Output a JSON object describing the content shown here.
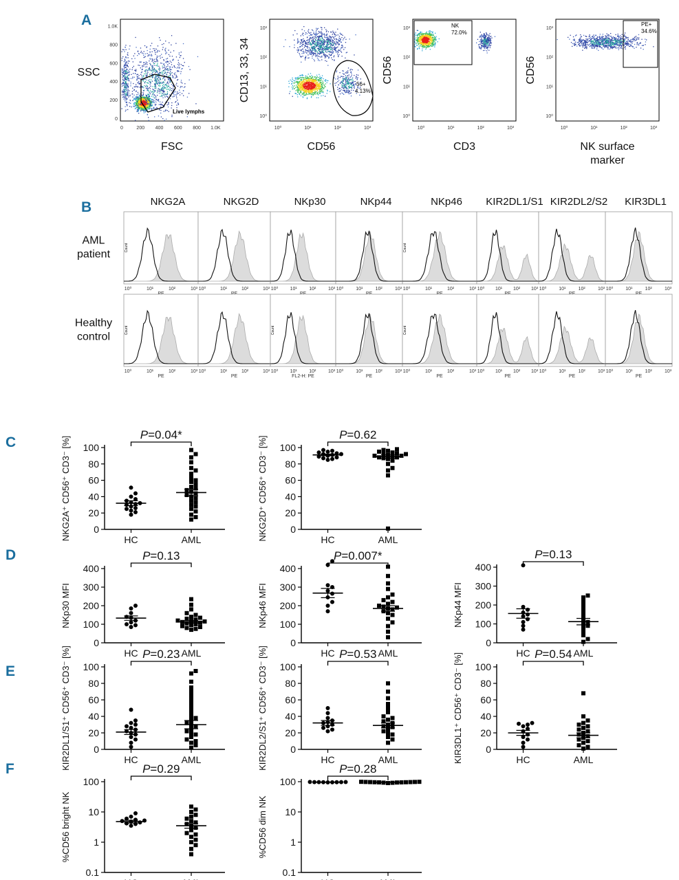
{
  "panel_letters": {
    "A": "A",
    "B": "B",
    "C": "C",
    "D": "D",
    "E": "E",
    "F": "F"
  },
  "panelA": {
    "plots": [
      {
        "ylabel": "SSC",
        "xlabel": "FSC",
        "gate": "Live lymphs",
        "yticks": [
          "0",
          "200",
          "400",
          "600",
          "800",
          "1.0K"
        ],
        "xticks": [
          "0",
          "200",
          "400",
          "600",
          "800",
          "1.0K"
        ]
      },
      {
        "ylabel": "CD13, 33, 34",
        "xlabel": "CD56",
        "gate": "56+",
        "gate_pct": "4.13%"
      },
      {
        "ylabel": "CD56",
        "xlabel": "CD3",
        "gate": "NK",
        "gate_pct": "72.0%"
      },
      {
        "ylabel": "CD56",
        "xlabel": "NK surface",
        "xlabel2": "marker",
        "gate": "PE+",
        "gate_pct": "34.6%"
      }
    ],
    "log_ticks": [
      "10⁰",
      "10¹",
      "10²",
      "10³"
    ]
  },
  "panelB": {
    "markers": [
      "NKG2A",
      "NKG2D",
      "NKp30",
      "NKp44",
      "NKp46",
      "KIR2DL1/S1",
      "KIR2DL2/S2",
      "KIR3DL1"
    ],
    "row1_label": [
      "AML",
      "patient"
    ],
    "row2_label": [
      "Healthy",
      "control"
    ],
    "axis_label": "PE",
    "axis_label_alt": "FL2-H: PE",
    "count_label": "Count",
    "log_ticks": [
      "10⁰",
      "10¹",
      "10²",
      "10³"
    ]
  },
  "groups": [
    "HC",
    "AML"
  ],
  "chart_data": [
    {
      "type": "scatter",
      "id": "C1",
      "ylabel": "NKG2A⁺ CD56⁺ CD3⁻ [%]",
      "pvalue_prefix": "P",
      "pvalue": "=0.04*",
      "ylim": [
        0,
        100
      ],
      "yticks": [
        "0",
        "20",
        "40",
        "60",
        "80",
        "100"
      ],
      "HC": {
        "values": [
          18,
          21,
          23,
          25,
          26,
          28,
          30,
          31,
          32,
          33,
          35,
          37,
          40,
          44,
          51
        ],
        "mean": 32,
        "sem": 3
      },
      "AML": {
        "values": [
          12,
          15,
          18,
          22,
          25,
          28,
          30,
          33,
          35,
          38,
          40,
          42,
          44,
          46,
          48,
          50,
          52,
          55,
          58,
          60,
          63,
          68,
          72,
          75,
          82,
          88,
          92,
          97
        ],
        "mean": 45,
        "sem": 4
      }
    },
    {
      "type": "scatter",
      "id": "C2",
      "ylabel": "NKG2D⁺ CD56⁺ CD3⁻ [%]",
      "pvalue_prefix": "P",
      "pvalue": "=0.62",
      "ylim": [
        0,
        100
      ],
      "yticks": [
        "0",
        "20",
        "40",
        "60",
        "80",
        "100"
      ],
      "HC": {
        "values": [
          85,
          86,
          87,
          88,
          89,
          90,
          91,
          92,
          92,
          93,
          94,
          95,
          96,
          97
        ],
        "mean": 91,
        "sem": 1
      },
      "AML": {
        "values": [
          1,
          66,
          72,
          75,
          80,
          84,
          86,
          87,
          88,
          88,
          89,
          90,
          90,
          91,
          92,
          92,
          93,
          94,
          95,
          96,
          97,
          98
        ],
        "mean": 89,
        "sem": 2
      }
    },
    {
      "type": "scatter",
      "id": "D1",
      "ylabel": "NKp30 MFI",
      "pvalue_prefix": "P",
      "pvalue": "=0.13",
      "ylim": [
        0,
        400
      ],
      "yticks": [
        "0",
        "100",
        "200",
        "300",
        "400"
      ],
      "HC": {
        "values": [
          85,
          95,
          100,
          110,
          120,
          135,
          140,
          160,
          185,
          200
        ],
        "mean": 133,
        "sem": 12
      },
      "AML": {
        "values": [
          70,
          75,
          80,
          85,
          90,
          95,
          100,
          105,
          108,
          112,
          115,
          118,
          120,
          125,
          130,
          135,
          140,
          150,
          160,
          180,
          205,
          235
        ],
        "mean": 113,
        "sem": 7
      }
    },
    {
      "type": "scatter",
      "id": "D2",
      "ylabel": "NKp46 MFI",
      "pvalue_prefix": "P",
      "pvalue": "=0.007*",
      "ylim": [
        0,
        400
      ],
      "yticks": [
        "0",
        "100",
        "200",
        "300",
        "400"
      ],
      "HC": {
        "values": [
          170,
          200,
          220,
          245,
          265,
          280,
          300,
          310,
          420,
          440
        ],
        "mean": 268,
        "sem": 25
      },
      "AML": {
        "values": [
          30,
          60,
          90,
          110,
          130,
          150,
          160,
          170,
          180,
          185,
          190,
          195,
          200,
          210,
          220,
          230,
          245,
          260,
          290,
          320,
          360,
          410
        ],
        "mean": 185,
        "sem": 15
      }
    },
    {
      "type": "scatter",
      "id": "D3",
      "ylabel": "NKp44 MFI",
      "pvalue_prefix": "P",
      "pvalue": "=0.13",
      "ylim": [
        0,
        400
      ],
      "yticks": [
        "0",
        "100",
        "200",
        "300",
        "400"
      ],
      "HC": {
        "values": [
          70,
          90,
          110,
          125,
          140,
          150,
          160,
          175,
          190,
          410
        ],
        "mean": 155,
        "sem": 25
      },
      "AML": {
        "values": [
          5,
          20,
          40,
          60,
          80,
          90,
          100,
          110,
          120,
          140,
          160,
          180,
          200,
          220,
          240,
          250
        ],
        "mean": 112,
        "sem": 17
      }
    },
    {
      "type": "scatter",
      "id": "E1",
      "ylabel": "KIR2DL1/S1⁺ CD56⁺ CD3⁻ [%]",
      "pvalue_prefix": "P",
      "pvalue": "=0.23",
      "ylim": [
        0,
        100
      ],
      "yticks": [
        "0",
        "20",
        "40",
        "60",
        "80",
        "100"
      ],
      "HC": {
        "values": [
          3,
          8,
          12,
          15,
          18,
          20,
          22,
          24,
          26,
          28,
          30,
          32,
          35,
          48
        ],
        "mean": 21,
        "sem": 3
      },
      "AML": {
        "values": [
          2,
          5,
          8,
          10,
          12,
          15,
          18,
          20,
          22,
          25,
          28,
          30,
          32,
          35,
          38,
          40,
          45,
          50,
          55,
          60,
          65,
          70,
          75,
          82,
          92,
          95
        ],
        "mean": 30,
        "sem": 5
      }
    },
    {
      "type": "scatter",
      "id": "E2",
      "ylabel": "KIR2DL2/S1⁺ CD56⁺ CD3⁻ [%]",
      "pvalue_prefix": "P",
      "pvalue": "=0.53",
      "ylim": [
        0,
        100
      ],
      "yticks": [
        "0",
        "20",
        "40",
        "60",
        "80",
        "100"
      ],
      "HC": {
        "values": [
          22,
          24,
          26,
          28,
          30,
          32,
          33,
          35,
          38,
          44,
          50
        ],
        "mean": 32,
        "sem": 3
      },
      "AML": {
        "values": [
          8,
          12,
          15,
          18,
          20,
          22,
          25,
          27,
          28,
          30,
          32,
          34,
          36,
          38,
          40,
          45,
          50,
          55,
          62,
          70,
          80
        ],
        "mean": 29,
        "sem": 3
      }
    },
    {
      "type": "scatter",
      "id": "E3",
      "ylabel": "KIR3DL1⁺ CD56⁺ CD3⁻ [%]",
      "pvalue_prefix": "P",
      "pvalue": "=0.54",
      "ylim": [
        0,
        100
      ],
      "yticks": [
        "0",
        "20",
        "40",
        "60",
        "80",
        "100"
      ],
      "HC": {
        "values": [
          3,
          8,
          12,
          15,
          18,
          22,
          25,
          28,
          30,
          31,
          32
        ],
        "mean": 20,
        "sem": 3
      },
      "AML": {
        "values": [
          1,
          3,
          5,
          8,
          10,
          12,
          14,
          16,
          18,
          20,
          22,
          24,
          26,
          28,
          30,
          32,
          35,
          40,
          68
        ],
        "mean": 17,
        "sem": 3
      }
    },
    {
      "type": "scatter",
      "id": "F1",
      "ylabel": "%CD56 bright NK",
      "pvalue_prefix": "P",
      "pvalue": "=0.29",
      "scale": "log",
      "ylim": [
        0.1,
        100
      ],
      "yticks": [
        "0.1",
        "1",
        "10",
        "100"
      ],
      "HC": {
        "values": [
          3.5,
          4,
          4.2,
          4.5,
          4.8,
          5,
          5.2,
          5.5,
          6,
          7,
          9
        ],
        "mean": 4.8,
        "sem": 0.5
      },
      "AML": {
        "values": [
          0.4,
          0.6,
          0.8,
          1,
          1.2,
          1.5,
          1.8,
          2,
          2.5,
          3,
          3.5,
          4,
          4.5,
          5,
          6,
          7,
          8,
          10,
          12,
          15
        ],
        "mean": 3.5,
        "sem": 0.6
      }
    },
    {
      "type": "scatter",
      "id": "F2",
      "ylabel": "%CD56 dim NK",
      "pvalue_prefix": "P",
      "pvalue": "=0.28",
      "scale": "log",
      "ylim": [
        0.1,
        100
      ],
      "yticks": [
        "0.1",
        "1",
        "10",
        "100"
      ],
      "HC": {
        "values": [
          95,
          95.5,
          96,
          96,
          96.5,
          97,
          97,
          97.5,
          98
        ],
        "mean": 96.5,
        "sem": 0.5
      },
      "AML": {
        "values": [
          90,
          92,
          93,
          94,
          95,
          95,
          96,
          96,
          97,
          97,
          98,
          98,
          99,
          99
        ],
        "mean": 96,
        "sem": 0.5
      }
    }
  ]
}
